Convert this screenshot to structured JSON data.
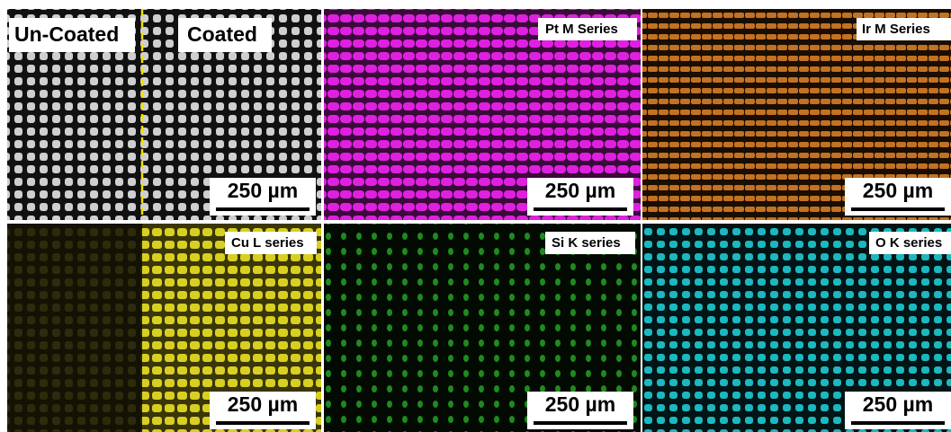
{
  "panels": [
    {
      "labels": [
        "Un-Coated",
        "Coated"
      ],
      "scale_bar": "250 µm"
    },
    {
      "label": "Pt M Series",
      "scale_bar": "250 µm"
    },
    {
      "label": "Ir M Series",
      "scale_bar": "250 µm"
    },
    {
      "label": "Cu L series",
      "scale_bar": "250 µm"
    },
    {
      "label": "Si K series",
      "scale_bar": "250 µm"
    },
    {
      "label": "O K series",
      "scale_bar": "250 µm"
    }
  ]
}
